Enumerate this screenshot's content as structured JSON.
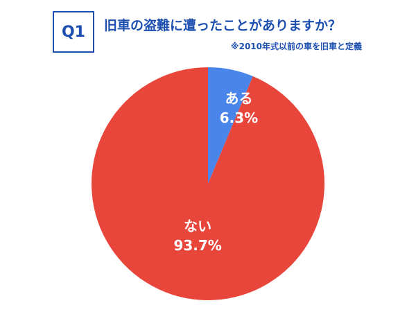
{
  "header": {
    "badge": "Q1",
    "title": "旧車の盗難に遭ったことがありますか？",
    "note": "※2010年式以前の車を旧車と定義"
  },
  "colors": {
    "accent": "#1d4fb0",
    "slice_yes": "#4a86ea",
    "slice_no": "#e8463a",
    "label_text": "#ffffff"
  },
  "chart_data": {
    "type": "pie",
    "title": "旧車の盗難に遭ったことがありますか？",
    "slices": [
      {
        "label": "ある",
        "value": 6.3,
        "value_label": "6.3%",
        "color": "#4a86ea"
      },
      {
        "label": "ない",
        "value": 93.7,
        "value_label": "93.7%",
        "color": "#e8463a"
      }
    ],
    "start_angle_deg": 0,
    "direction": "clockwise"
  }
}
